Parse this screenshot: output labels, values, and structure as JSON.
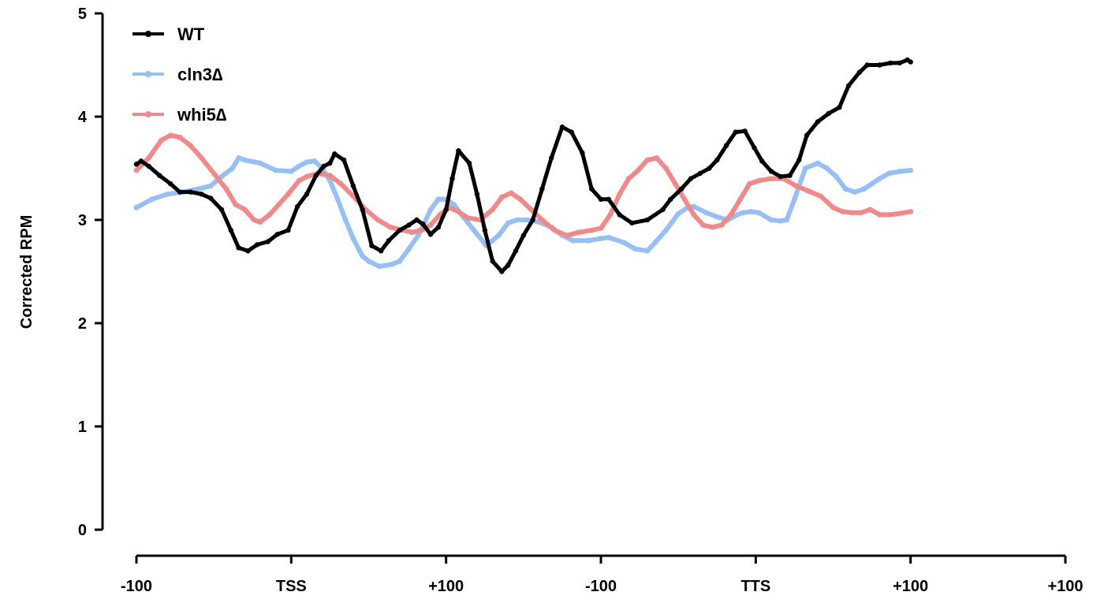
{
  "chart_data": {
    "type": "line",
    "ylabel": "Corrected RPM",
    "xlabel": "",
    "title": "",
    "xlim": [
      0,
      600
    ],
    "ylim": [
      0,
      5
    ],
    "x_ticks": [
      {
        "x": 0,
        "label": "-100"
      },
      {
        "x": 100,
        "label": "TSS"
      },
      {
        "x": 200,
        "label": "+100"
      },
      {
        "x": 300,
        "label": "-100"
      },
      {
        "x": 400,
        "label": "TTS"
      },
      {
        "x": 500,
        "label": "+100"
      }
    ],
    "y_ticks": [
      0,
      1,
      2,
      3,
      4,
      5
    ],
    "grid": false,
    "legend_position": "top-left",
    "series": [
      {
        "name": "WT",
        "color": "#000000",
        "x": [
          0,
          3,
          8,
          15,
          22,
          28,
          35,
          42,
          48,
          55,
          61,
          66,
          72,
          78,
          85,
          91,
          98,
          104,
          110,
          116,
          121,
          125,
          128,
          134,
          140,
          146,
          152,
          158,
          163,
          170,
          176,
          181,
          185,
          190,
          195,
          200,
          204,
          208,
          215,
          220,
          225,
          230,
          236,
          240,
          245,
          250,
          256,
          262,
          268,
          275,
          281,
          288,
          294,
          300,
          305,
          312,
          320,
          330,
          340,
          345,
          352,
          358,
          364,
          370,
          375,
          381,
          387,
          393,
          399,
          404,
          410,
          416,
          422,
          428,
          433,
          440,
          447,
          454,
          460,
          467,
          472,
          480,
          487,
          493,
          498,
          500
        ],
        "values": [
          3.54,
          3.57,
          3.52,
          3.43,
          3.35,
          3.27,
          3.27,
          3.25,
          3.21,
          3.1,
          2.9,
          2.73,
          2.7,
          2.76,
          2.79,
          2.86,
          2.9,
          3.13,
          3.25,
          3.43,
          3.52,
          3.55,
          3.64,
          3.58,
          3.33,
          3.1,
          2.75,
          2.7,
          2.8,
          2.9,
          2.95,
          3.0,
          2.96,
          2.86,
          2.93,
          3.1,
          3.4,
          3.67,
          3.55,
          3.25,
          2.9,
          2.6,
          2.5,
          2.56,
          2.7,
          2.85,
          3.0,
          3.3,
          3.6,
          3.9,
          3.85,
          3.65,
          3.3,
          3.2,
          3.2,
          3.05,
          2.97,
          3.0,
          3.1,
          3.2,
          3.3,
          3.4,
          3.45,
          3.5,
          3.58,
          3.72,
          3.85,
          3.86,
          3.7,
          3.57,
          3.47,
          3.42,
          3.43,
          3.58,
          3.82,
          3.95,
          4.03,
          4.09,
          4.3,
          4.43,
          4.5,
          4.5,
          4.52,
          4.52,
          4.55,
          4.53
        ]
      },
      {
        "name": "cln3∆",
        "color": "#95bff5",
        "x": [
          0,
          10,
          20,
          30,
          40,
          48,
          55,
          62,
          66,
          70,
          80,
          90,
          100,
          105,
          110,
          115,
          120,
          125,
          130,
          135,
          140,
          146,
          150,
          157,
          165,
          170,
          176,
          182,
          187,
          190,
          195,
          200,
          205,
          210,
          218,
          226,
          234,
          240,
          246,
          252,
          260,
          268,
          275,
          282,
          292,
          300,
          305,
          315,
          322,
          330,
          335,
          342,
          350,
          356,
          360,
          368,
          375,
          382,
          388,
          392,
          397,
          402,
          410,
          416,
          420,
          425,
          432,
          440,
          446,
          452,
          458,
          464,
          470,
          475,
          480,
          486,
          493,
          500
        ],
        "values": [
          3.12,
          3.2,
          3.25,
          3.27,
          3.3,
          3.33,
          3.42,
          3.5,
          3.6,
          3.58,
          3.55,
          3.48,
          3.47,
          3.52,
          3.56,
          3.57,
          3.5,
          3.38,
          3.2,
          3.0,
          2.82,
          2.65,
          2.6,
          2.55,
          2.57,
          2.6,
          2.72,
          2.85,
          3.0,
          3.1,
          3.2,
          3.2,
          3.15,
          3.05,
          2.9,
          2.75,
          2.85,
          2.97,
          3.0,
          3.0,
          2.98,
          2.93,
          2.85,
          2.8,
          2.8,
          2.82,
          2.83,
          2.78,
          2.72,
          2.7,
          2.78,
          2.9,
          3.06,
          3.12,
          3.13,
          3.07,
          3.03,
          3.0,
          3.05,
          3.07,
          3.08,
          3.07,
          3.0,
          2.99,
          3.0,
          3.2,
          3.5,
          3.55,
          3.5,
          3.42,
          3.3,
          3.27,
          3.3,
          3.35,
          3.4,
          3.45,
          3.47,
          3.48
        ]
      },
      {
        "name": "whi5∆",
        "color": "#f08a8a",
        "x": [
          0,
          8,
          16,
          22,
          28,
          35,
          42,
          50,
          58,
          64,
          70,
          76,
          80,
          86,
          92,
          98,
          105,
          110,
          117,
          125,
          132,
          140,
          148,
          156,
          164,
          172,
          178,
          184,
          190,
          196,
          202,
          208,
          214,
          222,
          230,
          236,
          242,
          248,
          255,
          262,
          270,
          278,
          286,
          294,
          300,
          306,
          312,
          318,
          324,
          330,
          336,
          342,
          348,
          354,
          360,
          366,
          372,
          378,
          384,
          390,
          396,
          402,
          410,
          418,
          426,
          434,
          442,
          450,
          456,
          462,
          468,
          474,
          480,
          486,
          492,
          500
        ],
        "values": [
          3.48,
          3.6,
          3.77,
          3.82,
          3.8,
          3.72,
          3.6,
          3.45,
          3.3,
          3.15,
          3.1,
          3.0,
          2.98,
          3.05,
          3.15,
          3.25,
          3.38,
          3.42,
          3.45,
          3.43,
          3.35,
          3.23,
          3.1,
          3.0,
          2.93,
          2.9,
          2.88,
          2.9,
          2.95,
          3.05,
          3.12,
          3.08,
          3.02,
          3.0,
          3.1,
          3.22,
          3.26,
          3.2,
          3.1,
          3.0,
          2.9,
          2.85,
          2.88,
          2.9,
          2.92,
          3.05,
          3.25,
          3.4,
          3.48,
          3.58,
          3.6,
          3.5,
          3.35,
          3.2,
          3.05,
          2.95,
          2.93,
          2.95,
          3.05,
          3.2,
          3.35,
          3.38,
          3.4,
          3.4,
          3.33,
          3.28,
          3.23,
          3.12,
          3.08,
          3.07,
          3.07,
          3.1,
          3.05,
          3.05,
          3.06,
          3.08
        ]
      }
    ]
  }
}
